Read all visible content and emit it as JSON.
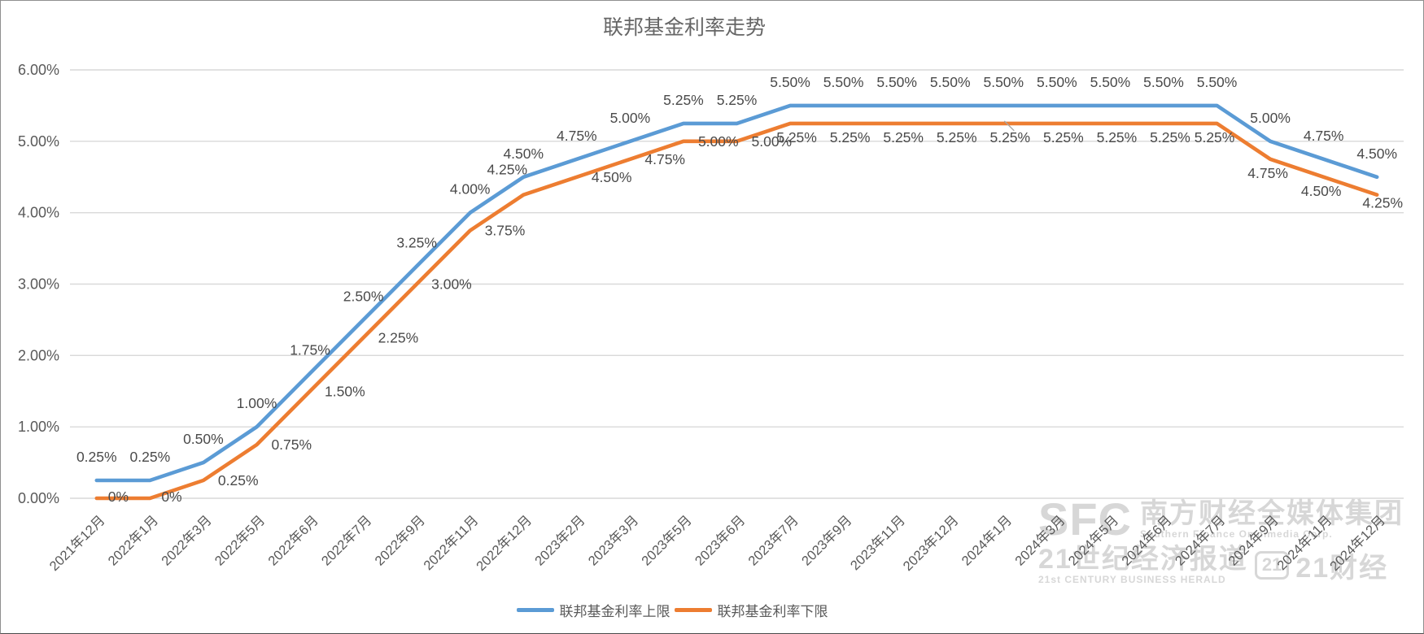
{
  "chart_data": {
    "type": "line",
    "title": "联邦基金利率走势",
    "categories": [
      "2021年12月",
      "2022年1月",
      "2022年3月",
      "2022年5月",
      "2022年6月",
      "2022年7月",
      "2022年9月",
      "2022年11月",
      "2022年12月",
      "2023年2月",
      "2023年3月",
      "2023年5月",
      "2023年6月",
      "2023年7月",
      "2023年9月",
      "2023年11月",
      "2023年12月",
      "2024年1月",
      "2024年3月",
      "2024年5月",
      "2024年6月",
      "2024年7月",
      "2024年9月",
      "2024年11月",
      "2024年12月"
    ],
    "series": [
      {
        "name": "联邦基金利率上限",
        "color": "#5B9BD5",
        "values": [
          0.25,
          0.25,
          0.5,
          1.0,
          1.75,
          2.5,
          3.25,
          4.0,
          4.5,
          4.75,
          5.0,
          5.25,
          5.25,
          5.5,
          5.5,
          5.5,
          5.5,
          5.5,
          5.5,
          5.5,
          5.5,
          5.5,
          5.0,
          4.75,
          4.5
        ],
        "labels": [
          "0.25%",
          "0.25%",
          "0.50%",
          "1.00%",
          "1.75%",
          "2.50%",
          "3.25%",
          "4.00%",
          "4.50%",
          "4.75%",
          "5.00%",
          "5.25%",
          "5.25%",
          "5.50%",
          "5.50%",
          "5.50%",
          "5.50%",
          "5.50%",
          "5.50%",
          "5.50%",
          "5.50%",
          "5.50%",
          "5.00%",
          "4.75%",
          "4.50%"
        ]
      },
      {
        "name": "联邦基金利率下限",
        "color": "#ED7D31",
        "values": [
          0,
          0,
          0.25,
          0.75,
          1.5,
          2.25,
          3.0,
          3.75,
          4.25,
          4.5,
          4.75,
          5.0,
          5.0,
          5.25,
          5.25,
          5.25,
          5.25,
          5.25,
          5.25,
          5.25,
          5.25,
          5.25,
          4.75,
          4.5,
          4.25
        ],
        "labels": [
          "0%",
          "0%",
          "0.25%",
          "0.75%",
          "1.50%",
          "2.25%",
          "3.00%",
          "3.75%",
          "4.25%",
          "4.50%",
          "4.75%",
          "5.00%",
          "5.00%",
          "5.25%",
          "5.25%",
          "5.25%",
          "5.25%",
          "5.25%",
          "5.25%",
          "5.25%",
          "5.25%",
          "5.25%",
          "4.75%",
          "4.50%",
          "4.25%"
        ]
      }
    ],
    "y_axis": {
      "min": 0,
      "max": 6,
      "tick_labels": [
        "0.00%",
        "1.00%",
        "2.00%",
        "3.00%",
        "4.00%",
        "5.00%",
        "6.00%"
      ]
    },
    "grid": true,
    "legend_position": "bottom",
    "colors": {
      "gridline": "#D9D9D9",
      "axis_text": "#595959",
      "data_label_text": "#4a4a4a"
    }
  },
  "watermark": {
    "sfc": "SFC",
    "group_cn": "南方财经全媒体集团",
    "group_en": "Southern Finance Omnimedia Corp.",
    "herald_cn": "21世纪经济报道",
    "herald_en": "21st CENTURY BUSINESS HERALD",
    "logo21": "21",
    "tfinance_cn": "21财经"
  }
}
